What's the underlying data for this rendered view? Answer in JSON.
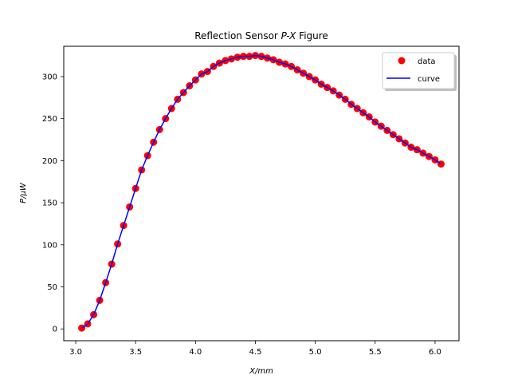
{
  "chart_data": {
    "type": "scatter",
    "title_main": "Reflection Sensor ",
    "title_vars": "P-X",
    "title_tail": " Figure",
    "xlabel": "X/mm",
    "ylabel": "P/μW",
    "xlim": [
      2.9,
      6.2
    ],
    "ylim": [
      -14,
      336
    ],
    "xticks": [
      "3.0",
      "3.5",
      "4.0",
      "4.5",
      "5.0",
      "5.5",
      "6.0"
    ],
    "xtick_values": [
      3.0,
      3.5,
      4.0,
      4.5,
      5.0,
      5.5,
      6.0
    ],
    "yticks": [
      "0",
      "50",
      "100",
      "150",
      "200",
      "250",
      "300"
    ],
    "ytick_values": [
      0,
      50,
      100,
      150,
      200,
      250,
      300
    ],
    "grid": false,
    "legend_position": "top-right",
    "series": [
      {
        "name": "data",
        "kind": "markers",
        "color": "#ff0000",
        "x": [
          3.05,
          3.1,
          3.15,
          3.2,
          3.25,
          3.3,
          3.35,
          3.4,
          3.45,
          3.5,
          3.55,
          3.6,
          3.65,
          3.7,
          3.75,
          3.8,
          3.85,
          3.9,
          3.95,
          4.0,
          4.05,
          4.1,
          4.15,
          4.2,
          4.25,
          4.3,
          4.35,
          4.4,
          4.45,
          4.5,
          4.55,
          4.6,
          4.65,
          4.7,
          4.75,
          4.8,
          4.85,
          4.9,
          4.95,
          5.0,
          5.05,
          5.1,
          5.15,
          5.2,
          5.25,
          5.3,
          5.35,
          5.4,
          5.45,
          5.5,
          5.55,
          5.6,
          5.65,
          5.7,
          5.75,
          5.8,
          5.85,
          5.9,
          5.95,
          6.0,
          6.05
        ],
        "y": [
          1,
          6,
          17,
          34,
          55,
          77,
          101,
          123,
          145,
          167,
          189,
          206,
          222,
          237,
          250,
          262,
          273,
          281,
          289,
          296,
          303,
          306,
          312,
          316,
          319,
          321,
          323,
          324,
          324,
          325,
          324,
          322,
          320,
          317,
          315,
          312,
          308,
          304,
          300,
          296,
          291,
          287,
          283,
          278,
          273,
          267,
          262,
          257,
          252,
          246,
          241,
          236,
          231,
          226,
          221,
          216,
          213,
          209,
          205,
          201,
          196
        ]
      },
      {
        "name": "curve",
        "kind": "line",
        "color": "#0000ff"
      }
    ]
  }
}
